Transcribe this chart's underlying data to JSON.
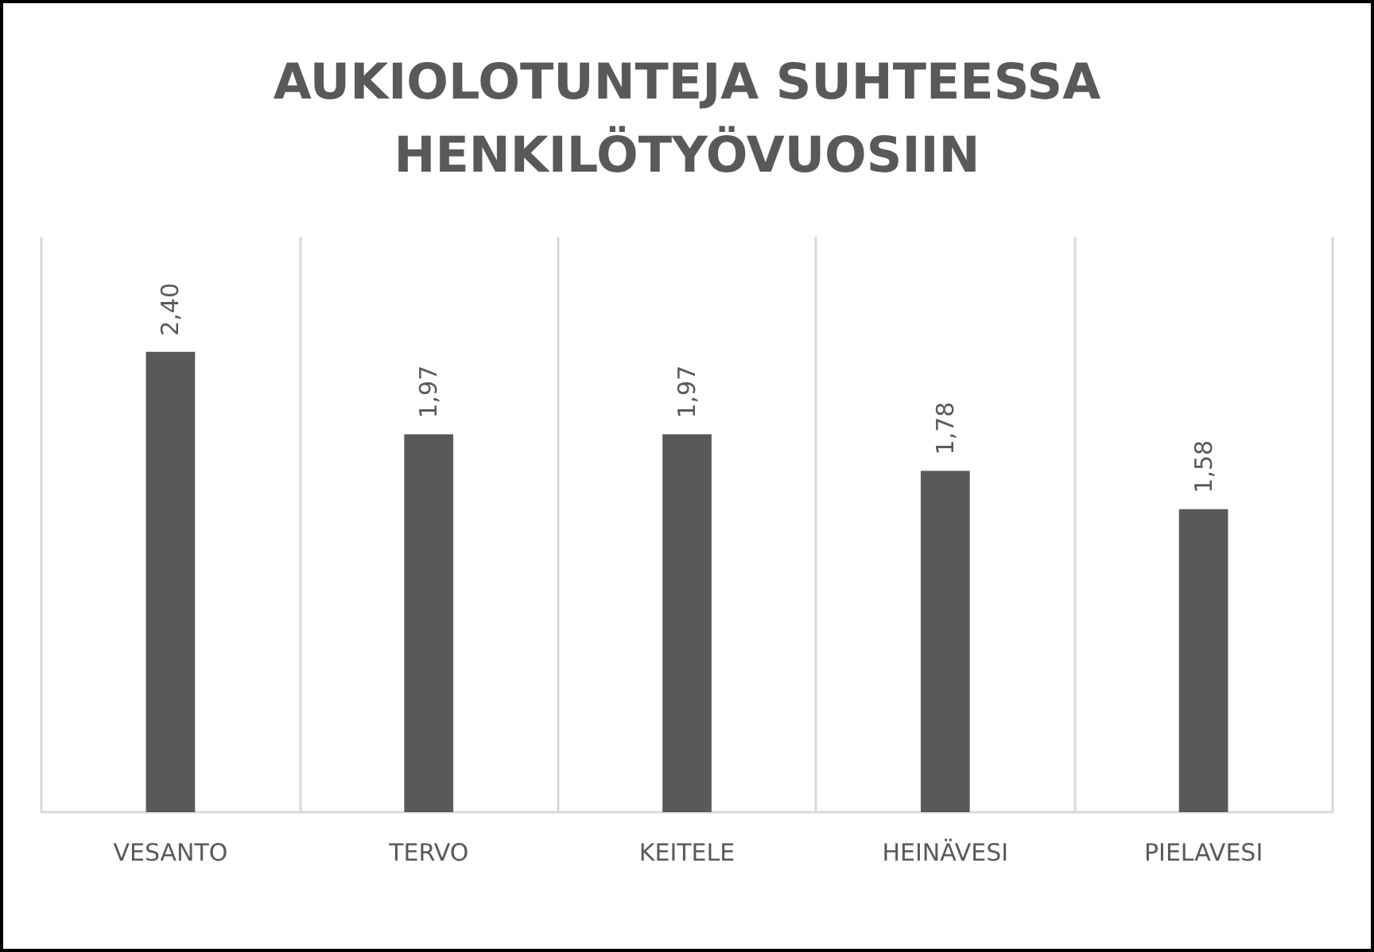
{
  "chart_data": {
    "type": "bar",
    "title": "AUKIOLOTUNTEJA SUHTEESSA\nHENKILÖTYÖVUOSIIN",
    "categories": [
      "VESANTO",
      "TERVO",
      "KEITELE",
      "HEINÄVESI",
      "PIELAVESI"
    ],
    "values": [
      2.4,
      1.97,
      1.97,
      1.78,
      1.58
    ],
    "value_labels": [
      "2,40",
      "1,97",
      "1,97",
      "1,78",
      "1,58"
    ],
    "color": "#595959",
    "ylim": [
      0,
      3
    ],
    "tick_labels": "x",
    "grid": "x"
  }
}
